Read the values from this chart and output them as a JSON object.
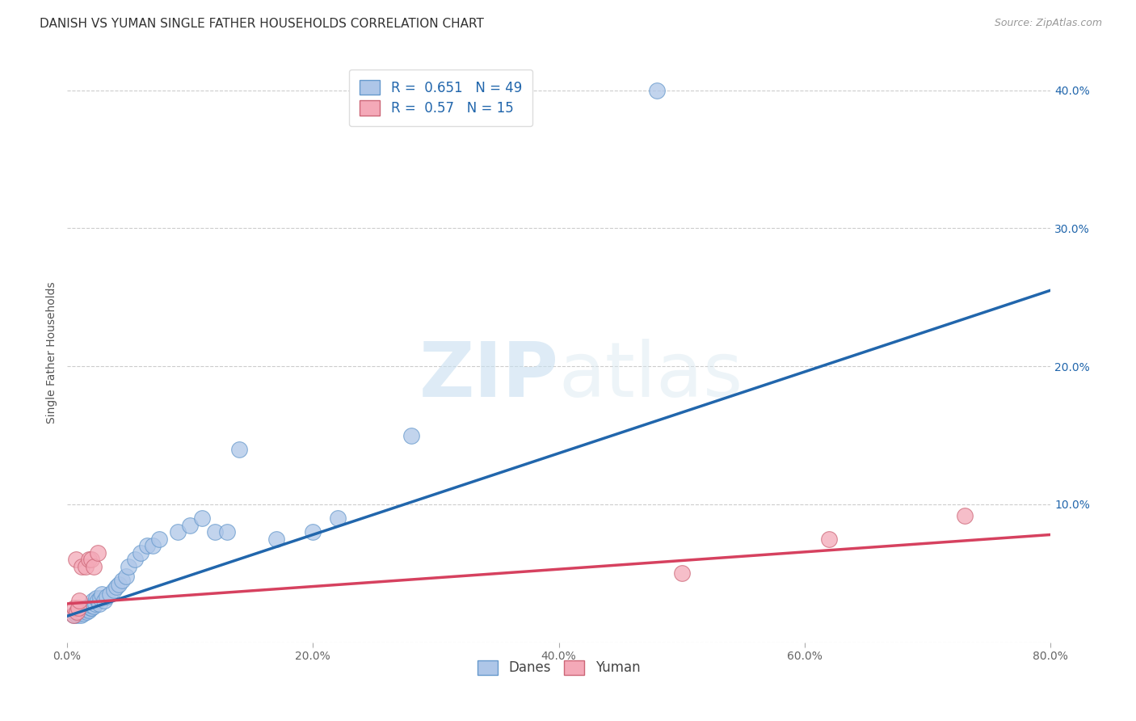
{
  "title": "DANISH VS YUMAN SINGLE FATHER HOUSEHOLDS CORRELATION CHART",
  "source": "Source: ZipAtlas.com",
  "ylabel": "Single Father Households",
  "xlabel": "",
  "xlim": [
    0.0,
    0.8
  ],
  "ylim": [
    0.0,
    0.42
  ],
  "xtick_labels": [
    "0.0%",
    "20.0%",
    "40.0%",
    "60.0%",
    "80.0%"
  ],
  "xtick_vals": [
    0.0,
    0.2,
    0.4,
    0.6,
    0.8
  ],
  "ytick_vals": [
    0.0,
    0.1,
    0.2,
    0.3,
    0.4
  ],
  "legend_label1": "Danes",
  "legend_label2": "Yuman",
  "R1": 0.651,
  "N1": 49,
  "R2": 0.57,
  "N2": 15,
  "color_danes": "#aec6e8",
  "color_danes_line": "#2166ac",
  "color_yuman": "#f4a9b8",
  "color_yuman_line": "#d6415f",
  "watermark_zip": "ZIP",
  "watermark_atlas": "atlas",
  "danes_x": [
    0.005,
    0.007,
    0.008,
    0.009,
    0.01,
    0.011,
    0.012,
    0.013,
    0.015,
    0.015,
    0.016,
    0.017,
    0.018,
    0.019,
    0.02,
    0.02,
    0.021,
    0.022,
    0.023,
    0.024,
    0.025,
    0.026,
    0.027,
    0.028,
    0.03,
    0.032,
    0.035,
    0.038,
    0.04,
    0.042,
    0.045,
    0.048,
    0.05,
    0.055,
    0.06,
    0.065,
    0.07,
    0.075,
    0.09,
    0.1,
    0.11,
    0.12,
    0.13,
    0.14,
    0.17,
    0.2,
    0.22,
    0.28,
    0.48
  ],
  "danes_y": [
    0.02,
    0.022,
    0.02,
    0.021,
    0.022,
    0.02,
    0.022,
    0.021,
    0.023,
    0.025,
    0.022,
    0.024,
    0.023,
    0.025,
    0.025,
    0.027,
    0.03,
    0.026,
    0.028,
    0.032,
    0.03,
    0.028,
    0.032,
    0.035,
    0.03,
    0.033,
    0.035,
    0.038,
    0.04,
    0.042,
    0.045,
    0.048,
    0.055,
    0.06,
    0.065,
    0.07,
    0.07,
    0.075,
    0.08,
    0.085,
    0.09,
    0.08,
    0.08,
    0.14,
    0.075,
    0.08,
    0.09,
    0.15,
    0.4
  ],
  "yuman_x": [
    0.005,
    0.006,
    0.007,
    0.008,
    0.009,
    0.01,
    0.012,
    0.015,
    0.018,
    0.02,
    0.022,
    0.025,
    0.5,
    0.62,
    0.73
  ],
  "yuman_y": [
    0.02,
    0.025,
    0.06,
    0.022,
    0.025,
    0.03,
    0.055,
    0.055,
    0.06,
    0.06,
    0.055,
    0.065,
    0.05,
    0.075,
    0.092
  ],
  "grid_color": "#cccccc",
  "background_color": "#ffffff",
  "title_fontsize": 11,
  "label_fontsize": 10,
  "tick_fontsize": 10,
  "source_fontsize": 9,
  "danes_line_x0": 0.0,
  "danes_line_y0": 0.019,
  "danes_line_x1": 0.8,
  "danes_line_y1": 0.255,
  "yuman_line_x0": 0.0,
  "yuman_line_y0": 0.028,
  "yuman_line_x1": 0.8,
  "yuman_line_y1": 0.078
}
